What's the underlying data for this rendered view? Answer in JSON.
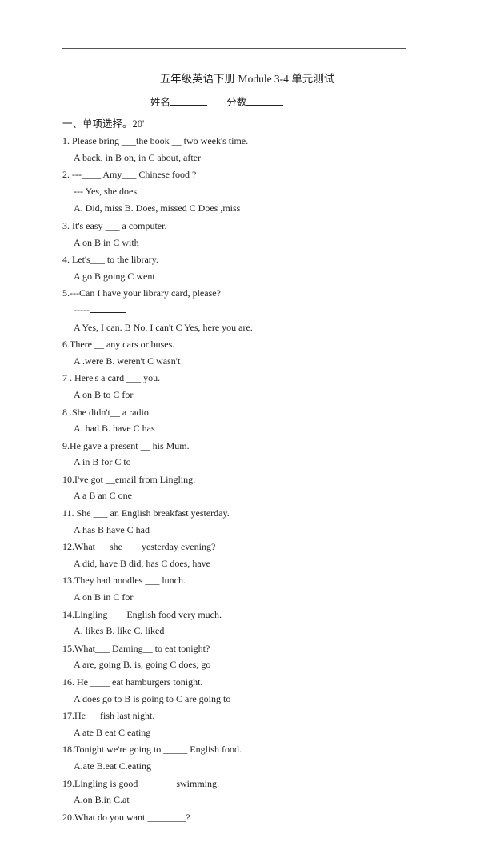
{
  "title": "五年级英语下册  Module 3-4  单元测试",
  "header": {
    "name_label": "姓名",
    "score_label": "分数"
  },
  "section1_heading": "一、单项选择。20'",
  "q1": {
    "stem": "1. Please bring ___the book __ two week's time.",
    "opts": "A back, in    B on, in    C about, after"
  },
  "q2": {
    "stem1": "2. ---____ Amy___ Chinese food ?",
    "stem2": "--- Yes, she does.",
    "opts": "A. Did, miss     B. Does, missed     C Does ,miss"
  },
  "q3": {
    "stem": "3. It's easy ___ a computer.",
    "opts": "A on          B in         C with"
  },
  "q4": {
    "stem": "4. Let's___ to the library.",
    "opts": "A go        B going      C went"
  },
  "q5": {
    "stem": "5.---Can I have your library card, please?",
    "stem2": "-----",
    "opts": "A Yes, I can. B No, I can't    C Yes, here you are."
  },
  "q6": {
    "stem": "6.There __ any cars or buses.",
    "opts": "A .were       B. weren't      C wasn't"
  },
  "q7": {
    "stem": "7 . Here's a card ___ you.",
    "opts": "A on         B to           C for"
  },
  "q8": {
    "stem": "8 .She didn't__ a radio.",
    "opts": "A. had       B. have        C has"
  },
  "q9": {
    "stem": "9.He gave a present __ his Mum.",
    "opts": "A in          B   for        C to"
  },
  "q10": {
    "stem": "10.I've got __email from Lingling.",
    "opts": "A a              B an            C one"
  },
  "q11": {
    "stem": "11. She ___ an English breakfast yesterday.",
    "opts": "A has           B have          C had"
  },
  "q12": {
    "stem": "12.What __ she ___ yesterday evening?",
    "opts": "A did, have      B did, has      C does, have"
  },
  "q13": {
    "stem": "13.They had noodles ___ lunch.",
    "opts": "A   on           B  in          C    for"
  },
  "q14": {
    "stem": "14.Lingling ___ English food very much.",
    "opts": "A. likes          B. like          C. liked"
  },
  "q15": {
    "stem": "15.What___ Daming__ to eat tonight?",
    "opts": "A are, going     B. is, going      C does, go"
  },
  "q16": {
    "stem": "16. He ____ eat hamburgers tonight.",
    "opts": "A does go to     B is going to     C are going to"
  },
  "q17": {
    "stem": "17.He __ fish last night.",
    "opts": "A ate           B eat                C eating"
  },
  "q18": {
    "stem": "18.Tonight we're going to  _____  English food.",
    "opts": "A.ate      B.eat      C.eating"
  },
  "q19": {
    "stem": "19.Lingling is good  _______  swimming.",
    "opts": "A.on      B.in      C.at"
  },
  "q20": {
    "stem": "20.What do you want  ________?"
  }
}
